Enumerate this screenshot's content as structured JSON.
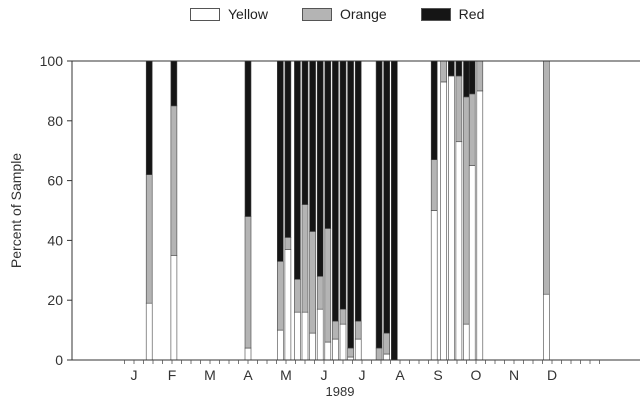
{
  "chart_data": {
    "type": "bar",
    "stacked": true,
    "ylabel": "Percent of Sample",
    "xlabel": "1989",
    "ylim": [
      0,
      100
    ],
    "yticks": [
      0,
      20,
      40,
      60,
      80,
      100
    ],
    "month_labels": [
      "J",
      "F",
      "M",
      "A",
      "M",
      "J",
      "J",
      "A",
      "S",
      "O",
      "N",
      "D"
    ],
    "grid": false,
    "legend_position": "top-center",
    "series": [
      {
        "name": "Yellow",
        "color": "#ffffff"
      },
      {
        "name": "Orange",
        "color": "#b4b4b4"
      },
      {
        "name": "Red",
        "color": "#151515"
      }
    ],
    "samples_note": "x is sample date as fractional month (1 = Jan); values are percent Yellow, Orange, Red",
    "samples": [
      {
        "x": 1.4,
        "yellow": 19,
        "orange": 43,
        "red": 38
      },
      {
        "x": 2.05,
        "yellow": 35,
        "orange": 50,
        "red": 15
      },
      {
        "x": 4.0,
        "yellow": 4,
        "orange": 44,
        "red": 52
      },
      {
        "x": 4.85,
        "yellow": 10,
        "orange": 23,
        "red": 67
      },
      {
        "x": 5.05,
        "yellow": 37,
        "orange": 4,
        "red": 59
      },
      {
        "x": 5.3,
        "yellow": 16,
        "orange": 11,
        "red": 73
      },
      {
        "x": 5.5,
        "yellow": 16,
        "orange": 36,
        "red": 48
      },
      {
        "x": 5.7,
        "yellow": 9,
        "orange": 34,
        "red": 57
      },
      {
        "x": 5.9,
        "yellow": 17,
        "orange": 11,
        "red": 72
      },
      {
        "x": 6.1,
        "yellow": 6,
        "orange": 38,
        "red": 56
      },
      {
        "x": 6.3,
        "yellow": 7,
        "orange": 6,
        "red": 87
      },
      {
        "x": 6.5,
        "yellow": 12,
        "orange": 5,
        "red": 83
      },
      {
        "x": 6.7,
        "yellow": 1,
        "orange": 3,
        "red": 96
      },
      {
        "x": 6.9,
        "yellow": 7,
        "orange": 6,
        "red": 87
      },
      {
        "x": 7.45,
        "yellow": 0,
        "orange": 4,
        "red": 96
      },
      {
        "x": 7.65,
        "yellow": 2,
        "orange": 7,
        "red": 91
      },
      {
        "x": 7.85,
        "yellow": 0,
        "orange": 0,
        "red": 100
      },
      {
        "x": 8.9,
        "yellow": 50,
        "orange": 17,
        "red": 33
      },
      {
        "x": 9.15,
        "yellow": 93,
        "orange": 7,
        "red": 0
      },
      {
        "x": 9.35,
        "yellow": 95,
        "orange": 0,
        "red": 5
      },
      {
        "x": 9.55,
        "yellow": 73,
        "orange": 22,
        "red": 5
      },
      {
        "x": 9.75,
        "yellow": 12,
        "orange": 76,
        "red": 12
      },
      {
        "x": 9.9,
        "yellow": 65,
        "orange": 24,
        "red": 11
      },
      {
        "x": 10.1,
        "yellow": 90,
        "orange": 10,
        "red": 0
      },
      {
        "x": 11.85,
        "yellow": 22,
        "orange": 78,
        "red": 0
      }
    ]
  }
}
